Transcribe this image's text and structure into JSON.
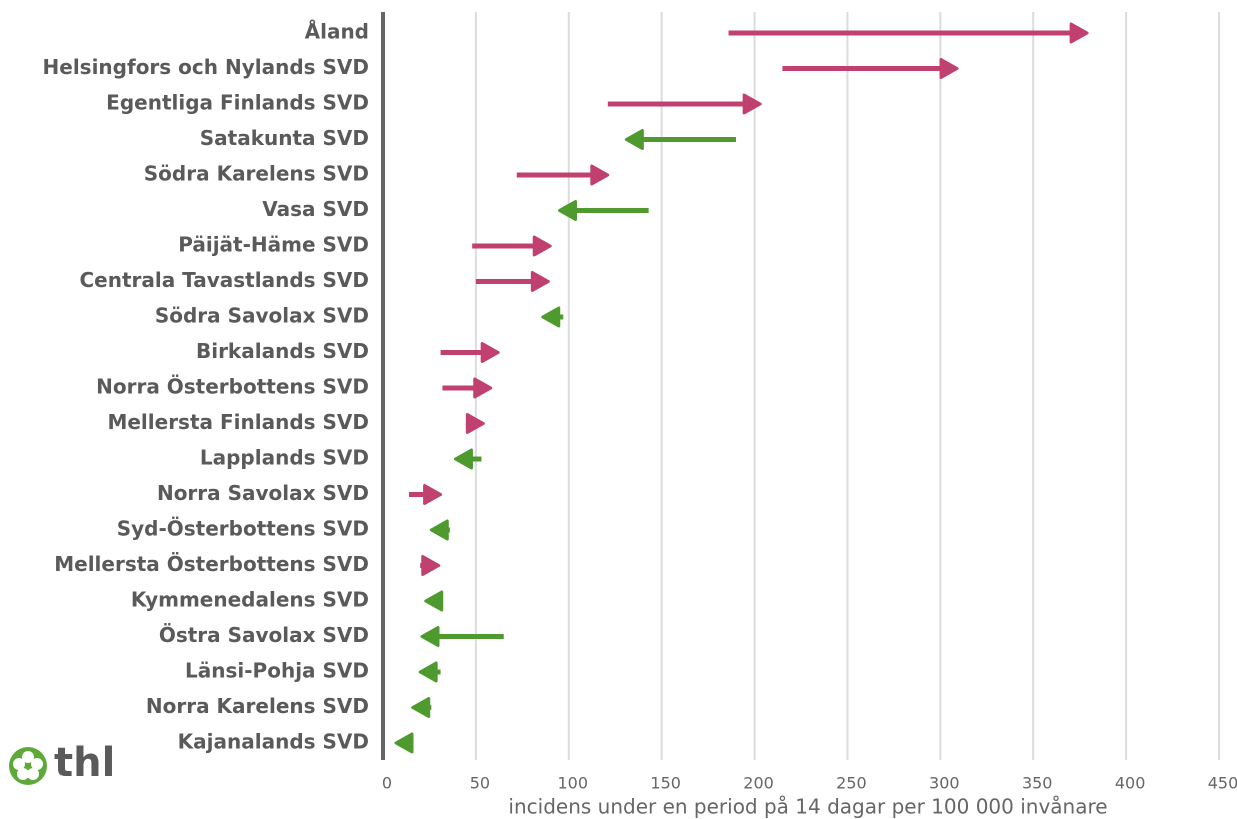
{
  "chart_data": {
    "type": "arrow",
    "xlabel": "incidens under en period på 14 dagar per 100 000 invånare",
    "logo": "thl",
    "categories": [
      "Åland",
      "Helsingfors och Nylands SVD",
      "Egentliga Finlands SVD",
      "Satakunta SVD",
      "Södra Karelens SVD",
      "Vasa SVD",
      "Päijät-Häme SVD",
      "Centrala Tavastlands SVD",
      "Södra Savolax SVD",
      "Birkalands SVD",
      "Norra Österbottens SVD",
      "Mellersta Finlands SVD",
      "Lapplands SVD",
      "Norra Savolax SVD",
      "Syd-Österbottens SVD",
      "Mellersta Österbottens SVD",
      "Kymmenedalens SVD",
      "Östra Savolax SVD",
      "Länsi-Pohja SVD",
      "Norra Karelens SVD",
      "Kajanalands SVD"
    ],
    "from": [
      186,
      215,
      121,
      190,
      72,
      143,
      48,
      50,
      97,
      31,
      32,
      45,
      53,
      14,
      36,
      20,
      32,
      65,
      31,
      26,
      16
    ],
    "to": [
      379,
      309,
      203,
      131,
      121,
      95,
      90,
      89,
      86,
      62,
      58,
      54,
      39,
      31,
      26,
      30,
      23,
      21,
      20,
      16,
      7
    ],
    "up_color": "#c0406f",
    "down_color": "#4f9a2f",
    "xlim": [
      0,
      450
    ],
    "xticks": [
      0,
      50,
      100,
      150,
      200,
      250,
      300,
      350,
      400,
      450
    ],
    "grid": true
  }
}
